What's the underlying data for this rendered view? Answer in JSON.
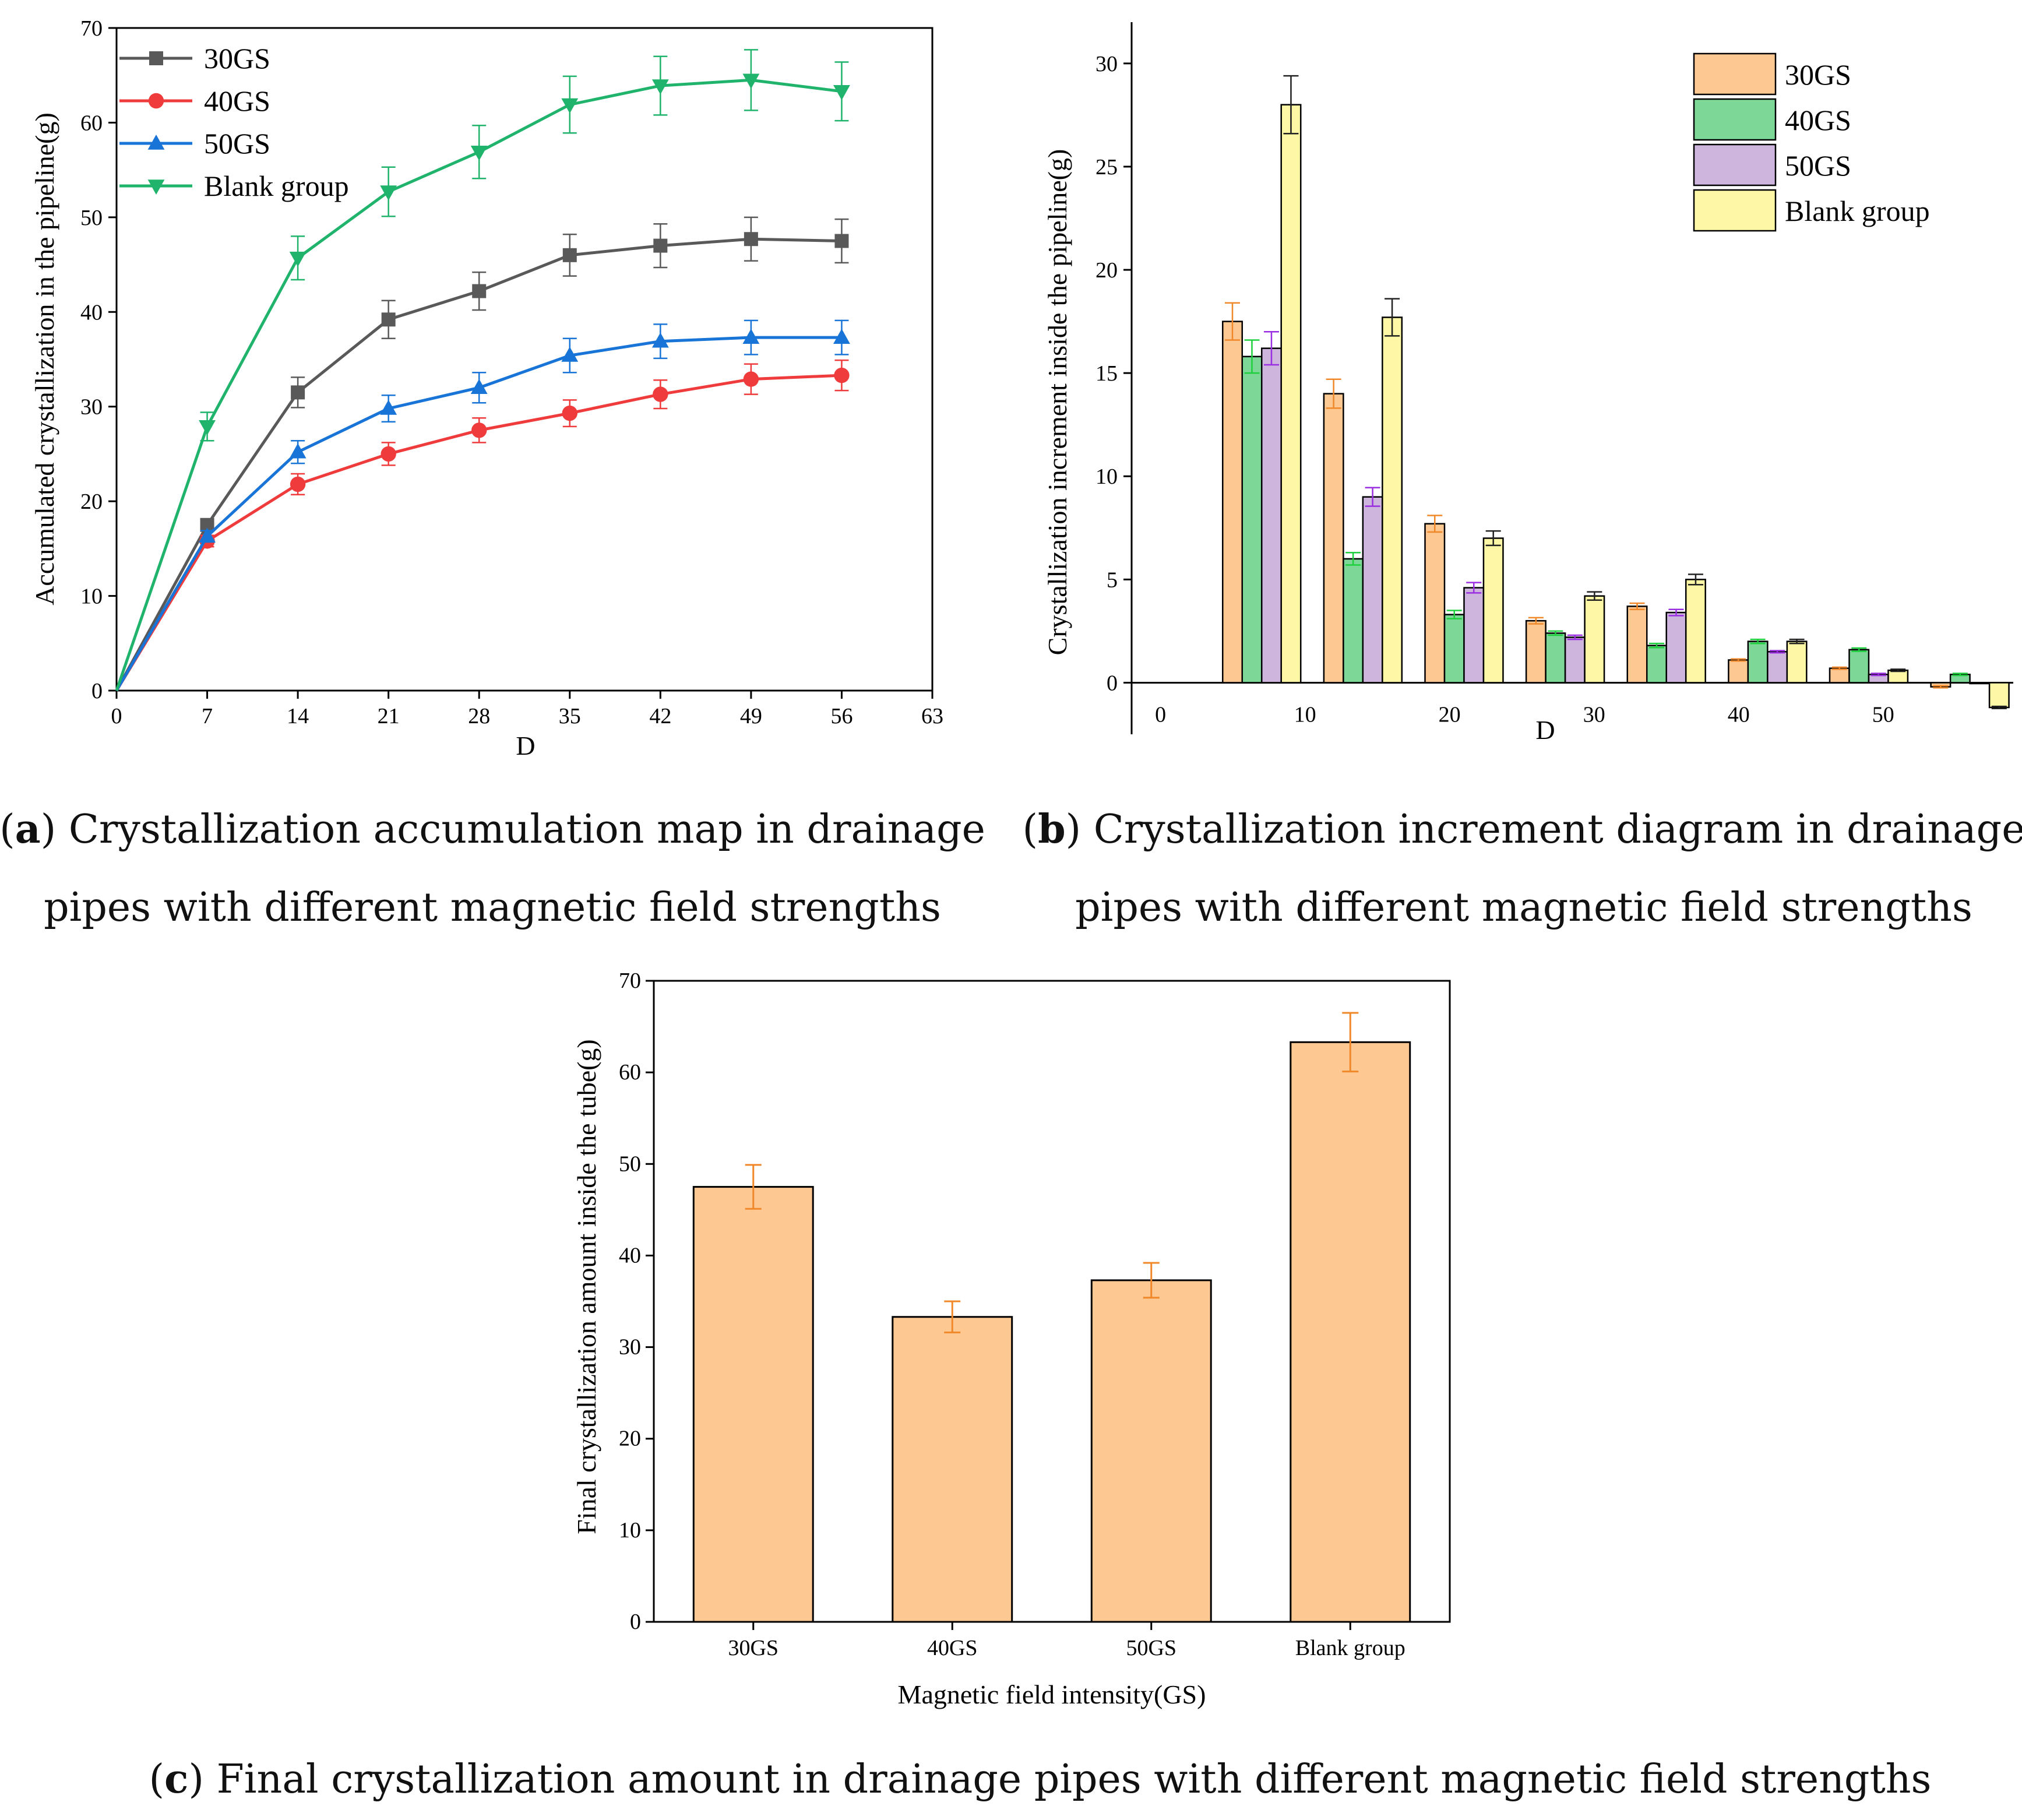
{
  "colors": {
    "s30": "#595959",
    "s40": "#ef3b3b",
    "s50": "#1874d6",
    "blank": "#1fb36b",
    "bar30": "#fdc892",
    "bar40": "#7dd897",
    "bar50": "#cdb5dd",
    "barBlank": "#fdf7a6",
    "err30": "#f0882a",
    "err40": "#1fd03e",
    "err50": "#9a2ee0",
    "errBlank": "#222222",
    "errC": "#f0882a"
  },
  "chart_data": [
    {
      "id": "a",
      "type": "line",
      "title": "",
      "xlabel": "D",
      "ylabel": "Accumulated crystallization in the pipeline(g)",
      "xlim": [
        0,
        63
      ],
      "ylim": [
        0,
        70
      ],
      "xticks": [
        "0",
        "7",
        "14",
        "21",
        "28",
        "35",
        "42",
        "49",
        "56",
        "63"
      ],
      "yticks": [
        "0",
        "10",
        "20",
        "30",
        "40",
        "50",
        "60",
        "70"
      ],
      "x": [
        0,
        7,
        14,
        21,
        28,
        35,
        42,
        49,
        56
      ],
      "legend_position": "top-left",
      "series": [
        {
          "name": "30GS",
          "marker": "square",
          "values": [
            0,
            17.5,
            31.5,
            39.2,
            42.2,
            46.0,
            47.0,
            47.7,
            47.5
          ],
          "errors": [
            0,
            0.6,
            1.6,
            2.0,
            2.0,
            2.2,
            2.3,
            2.3,
            2.3
          ]
        },
        {
          "name": "40GS",
          "marker": "circle",
          "values": [
            0,
            15.8,
            21.8,
            25.0,
            27.5,
            29.3,
            31.3,
            32.9,
            33.3
          ],
          "errors": [
            0,
            0.6,
            1.1,
            1.2,
            1.3,
            1.4,
            1.5,
            1.6,
            1.6
          ]
        },
        {
          "name": "50GS",
          "marker": "triangle-up",
          "values": [
            0,
            16.3,
            25.2,
            29.8,
            32.0,
            35.4,
            36.9,
            37.3,
            37.3
          ],
          "errors": [
            0,
            0.6,
            1.2,
            1.4,
            1.6,
            1.8,
            1.8,
            1.8,
            1.8
          ]
        },
        {
          "name": "Blank group",
          "marker": "triangle-down",
          "values": [
            0,
            27.9,
            45.7,
            52.7,
            56.9,
            61.9,
            63.9,
            64.5,
            63.3
          ],
          "errors": [
            0,
            1.5,
            2.3,
            2.6,
            2.8,
            3.0,
            3.1,
            3.2,
            3.1
          ]
        }
      ]
    },
    {
      "id": "b",
      "type": "bar",
      "title": "",
      "xlabel": "D",
      "ylabel": "Crystallization increment inside the pipeline(g)",
      "xlim": [
        -2,
        59
      ],
      "ylim": [
        -2.5,
        32
      ],
      "xticks": [
        "0",
        "10",
        "20",
        "30",
        "40",
        "50"
      ],
      "yticks": [
        "0",
        "5",
        "10",
        "15",
        "20",
        "25",
        "30"
      ],
      "group_centers": [
        7,
        14,
        21,
        28,
        35,
        42,
        49,
        56
      ],
      "legend_position": "top-right",
      "series": [
        {
          "name": "30GS",
          "values": [
            17.5,
            14.0,
            7.7,
            3.0,
            3.7,
            1.1,
            0.7,
            -0.2
          ],
          "errors": [
            0.9,
            0.7,
            0.4,
            0.15,
            0.15,
            0.05,
            0.05,
            0.05
          ]
        },
        {
          "name": "40GS",
          "values": [
            15.8,
            6.0,
            3.3,
            2.4,
            1.8,
            2.0,
            1.6,
            0.4
          ],
          "errors": [
            0.8,
            0.3,
            0.2,
            0.1,
            0.1,
            0.1,
            0.08,
            0.05
          ]
        },
        {
          "name": "50GS",
          "values": [
            16.2,
            9.0,
            4.6,
            2.2,
            3.4,
            1.5,
            0.4,
            0.0
          ],
          "errors": [
            0.8,
            0.45,
            0.25,
            0.1,
            0.15,
            0.05,
            0.05,
            0.0
          ]
        },
        {
          "name": "Blank group",
          "values": [
            28.0,
            17.7,
            7.0,
            4.2,
            5.0,
            2.0,
            0.6,
            -1.2
          ],
          "errors": [
            1.4,
            0.9,
            0.35,
            0.2,
            0.25,
            0.1,
            0.05,
            0.05
          ]
        }
      ]
    },
    {
      "id": "c",
      "type": "bar",
      "title": "",
      "xlabel": "Magnetic field intensity(GS)",
      "ylabel": "Final crystallization amount inside the tube(g)",
      "ylim": [
        0,
        70
      ],
      "yticks": [
        "0",
        "10",
        "20",
        "30",
        "40",
        "50",
        "60",
        "70"
      ],
      "categories": [
        "30GS",
        "40GS",
        "50GS",
        "Blank group"
      ],
      "values": [
        47.5,
        33.3,
        37.3,
        63.3
      ],
      "errors": [
        2.4,
        1.7,
        1.9,
        3.2
      ]
    }
  ],
  "captions": {
    "a_letter": "a",
    "a_line1": ") Crystallization accumulation map in drainage",
    "a_line2": "pipes with different magnetic field strengths",
    "b_letter": "b",
    "b_line1": ") Crystallization increment diagram in drainage",
    "b_line2": "pipes with different magnetic field strengths",
    "c_letter": "c",
    "c_line1": ") Final crystallization amount in drainage pipes with different magnetic field strengths"
  }
}
